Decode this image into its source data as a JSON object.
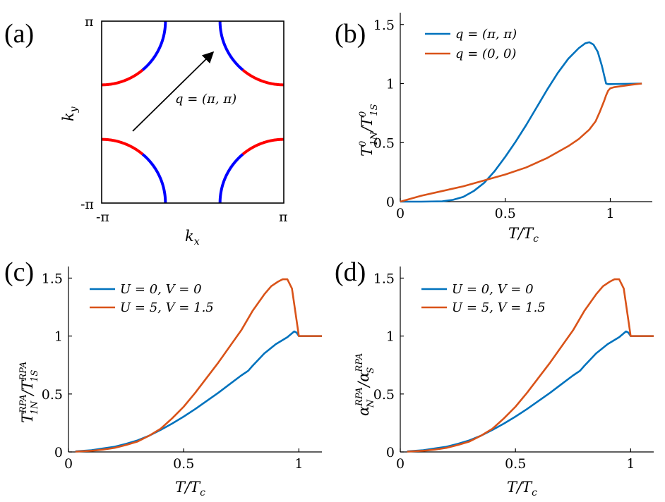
{
  "colors": {
    "blue_curve": "#0072BD",
    "orange_curve": "#D95319",
    "fs_blue": "#0000FF",
    "fs_red": "#FF0000",
    "axis": "#000000"
  },
  "chart_data": [
    {
      "id": "a",
      "type": "diagram",
      "panel_label": "(a)",
      "title": "",
      "xlabel": "k_x",
      "ylabel": "k_y",
      "xlim": [
        -3.1416,
        3.1416
      ],
      "ylim": [
        -3.1416,
        3.1416
      ],
      "x_ticks": [
        {
          "value": -3.1416,
          "label": "-π"
        },
        {
          "value": 3.1416,
          "label": "π"
        }
      ],
      "y_ticks": [
        {
          "value": -3.1416,
          "label": "-π"
        },
        {
          "value": 3.1416,
          "label": "π"
        }
      ],
      "arc_radius": 2.2,
      "arc_centers": [
        [
          -3.1416,
          3.1416
        ],
        [
          3.1416,
          3.1416
        ],
        [
          -3.1416,
          -3.1416
        ],
        [
          3.1416,
          -3.1416
        ]
      ],
      "segments": [
        {
          "color": "red",
          "angle_from_axis": [
            0,
            40
          ],
          "note": "near kx=±(π-2.2) edges"
        },
        {
          "color": "blue",
          "angle_from_axis": [
            40,
            90
          ],
          "note": "near ky=±(π-2.2) edges"
        }
      ],
      "arrow": {
        "from": [
          -1.64,
          -0.46
        ],
        "to": [
          0.93,
          1.69
        ]
      },
      "annotation": "q = (π, π)"
    },
    {
      "id": "b",
      "type": "line",
      "panel_label": "(b)",
      "xlabel": "T/T_c",
      "ylabel": "T^0_{1N}/T^0_{1S}",
      "xlim": [
        0,
        1.2
      ],
      "ylim": [
        0,
        1.6
      ],
      "x_ticks": [
        0,
        0.5,
        1
      ],
      "y_ticks": [
        0,
        0.5,
        1,
        1.5
      ],
      "x_tick_labels": [
        "0",
        "0.5",
        "1"
      ],
      "y_tick_labels": [
        "0",
        "0.5",
        "1",
        "1.5"
      ],
      "legend_position": "top-left",
      "series": [
        {
          "name": "q = (π, π)",
          "color": "blue",
          "x": [
            0,
            0.1,
            0.2,
            0.25,
            0.3,
            0.35,
            0.4,
            0.45,
            0.5,
            0.55,
            0.6,
            0.65,
            0.7,
            0.75,
            0.8,
            0.85,
            0.88,
            0.9,
            0.92,
            0.94,
            0.96,
            0.98,
            0.99,
            1.0,
            1.05,
            1.1,
            1.15
          ],
          "y": [
            0,
            0,
            0.003,
            0.015,
            0.04,
            0.09,
            0.16,
            0.26,
            0.38,
            0.51,
            0.65,
            0.8,
            0.95,
            1.09,
            1.21,
            1.3,
            1.34,
            1.35,
            1.33,
            1.27,
            1.15,
            1.0,
            0.995,
            0.995,
            0.997,
            0.998,
            1.0
          ]
        },
        {
          "name": "q = (0, 0)",
          "color": "orange",
          "x": [
            0,
            0.1,
            0.2,
            0.3,
            0.4,
            0.5,
            0.6,
            0.7,
            0.8,
            0.85,
            0.9,
            0.93,
            0.95,
            0.97,
            0.98,
            0.99,
            1.0,
            1.02,
            1.1,
            1.15
          ],
          "y": [
            0,
            0.05,
            0.09,
            0.13,
            0.18,
            0.23,
            0.29,
            0.37,
            0.47,
            0.53,
            0.61,
            0.68,
            0.76,
            0.85,
            0.9,
            0.94,
            0.96,
            0.97,
            0.99,
            1.0
          ]
        }
      ]
    },
    {
      "id": "c",
      "type": "line",
      "panel_label": "(c)",
      "xlabel": "T/T_c",
      "ylabel": "T^RPA_{1N}/T^RPA_{1S}",
      "xlim": [
        0,
        1.1
      ],
      "ylim": [
        0,
        1.6
      ],
      "x_ticks": [
        0,
        0.5,
        1
      ],
      "y_ticks": [
        0,
        0.5,
        1,
        1.5
      ],
      "x_tick_labels": [
        "0",
        "0.5",
        "1"
      ],
      "y_tick_labels": [
        "0",
        "0.5",
        "1",
        "1.5"
      ],
      "legend_position": "top-left",
      "series": [
        {
          "name": "U = 0, V = 0",
          "color": "blue",
          "x": [
            0.03,
            0.1,
            0.15,
            0.2,
            0.25,
            0.3,
            0.35,
            0.4,
            0.45,
            0.5,
            0.55,
            0.6,
            0.65,
            0.7,
            0.75,
            0.78,
            0.8,
            0.85,
            0.9,
            0.95,
            0.98,
            0.99,
            1.0,
            1.05,
            1.1
          ],
          "y": [
            0.005,
            0.015,
            0.03,
            0.045,
            0.07,
            0.1,
            0.14,
            0.19,
            0.245,
            0.305,
            0.37,
            0.44,
            0.51,
            0.585,
            0.66,
            0.7,
            0.745,
            0.85,
            0.93,
            0.99,
            1.04,
            1.03,
            1.0,
            1.0,
            1.0
          ]
        },
        {
          "name": "U = 5, V = 1.5",
          "color": "orange",
          "x": [
            0.03,
            0.1,
            0.15,
            0.2,
            0.25,
            0.3,
            0.35,
            0.4,
            0.45,
            0.5,
            0.55,
            0.6,
            0.65,
            0.7,
            0.75,
            0.8,
            0.85,
            0.88,
            0.91,
            0.93,
            0.95,
            0.97,
            1.0,
            1.05,
            1.1
          ],
          "y": [
            0.003,
            0.01,
            0.02,
            0.035,
            0.06,
            0.09,
            0.14,
            0.2,
            0.29,
            0.39,
            0.51,
            0.64,
            0.77,
            0.91,
            1.05,
            1.22,
            1.36,
            1.43,
            1.47,
            1.49,
            1.49,
            1.41,
            1.0,
            1.0,
            1.0
          ]
        }
      ]
    },
    {
      "id": "d",
      "type": "line",
      "panel_label": "(d)",
      "xlabel": "T/T_c",
      "ylabel": "α^RPA_N/α^RPA_S",
      "xlim": [
        0,
        1.1
      ],
      "ylim": [
        0,
        1.6
      ],
      "x_ticks": [
        0,
        0.5,
        1
      ],
      "y_ticks": [
        0,
        0.5,
        1,
        1.5
      ],
      "x_tick_labels": [
        "0",
        "0.5",
        "1"
      ],
      "y_tick_labels": [
        "0",
        "0.5",
        "1",
        "1.5"
      ],
      "legend_position": "top-left",
      "series": [
        {
          "name": "U = 0, V = 0",
          "color": "blue",
          "x": [
            0.03,
            0.1,
            0.15,
            0.2,
            0.25,
            0.3,
            0.35,
            0.4,
            0.45,
            0.5,
            0.55,
            0.6,
            0.65,
            0.7,
            0.75,
            0.78,
            0.8,
            0.85,
            0.9,
            0.95,
            0.98,
            0.99,
            1.0,
            1.05,
            1.1
          ],
          "y": [
            0.005,
            0.015,
            0.03,
            0.045,
            0.07,
            0.1,
            0.14,
            0.19,
            0.245,
            0.305,
            0.37,
            0.44,
            0.51,
            0.585,
            0.66,
            0.7,
            0.745,
            0.85,
            0.93,
            0.99,
            1.04,
            1.03,
            1.0,
            1.0,
            1.0
          ]
        },
        {
          "name": "U = 5, V = 1.5",
          "color": "orange",
          "x": [
            0.03,
            0.1,
            0.15,
            0.2,
            0.25,
            0.3,
            0.35,
            0.4,
            0.45,
            0.5,
            0.55,
            0.6,
            0.65,
            0.7,
            0.75,
            0.8,
            0.85,
            0.88,
            0.91,
            0.93,
            0.95,
            0.97,
            1.0,
            1.05,
            1.1
          ],
          "y": [
            0.003,
            0.01,
            0.02,
            0.035,
            0.06,
            0.09,
            0.14,
            0.2,
            0.29,
            0.39,
            0.51,
            0.64,
            0.77,
            0.91,
            1.05,
            1.22,
            1.36,
            1.43,
            1.47,
            1.49,
            1.49,
            1.41,
            1.0,
            1.0,
            1.0
          ]
        }
      ]
    }
  ]
}
